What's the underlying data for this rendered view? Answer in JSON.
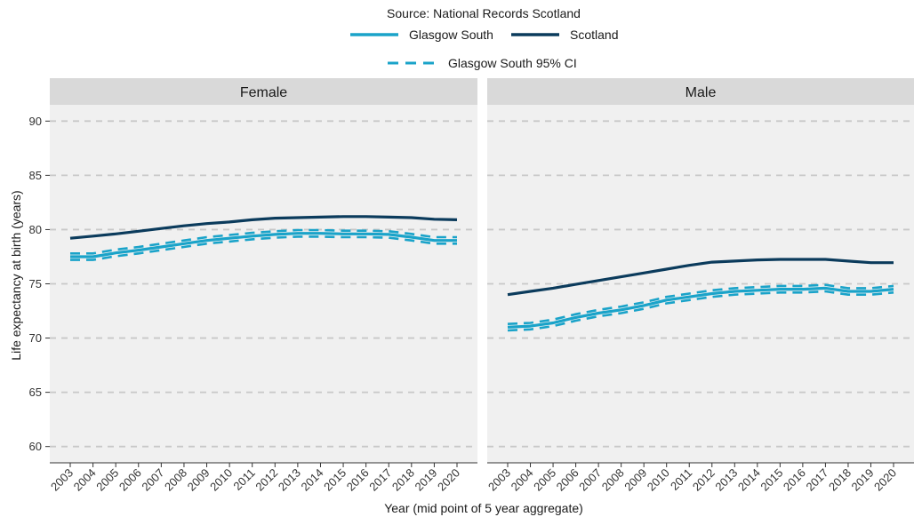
{
  "source_text": "Source: National Records Scotland",
  "legend": {
    "glasgow_south": "Glasgow South",
    "scotland": "Scotland",
    "ci": "Glasgow South 95% CI"
  },
  "colors": {
    "glasgow_south": "#1aa3c9",
    "scotland": "#0b3b5c",
    "panel_bg": "#f0f0f0",
    "strip_bg": "#d9d9d9",
    "grid": "#c8c8c8"
  },
  "chart_data": {
    "type": "line",
    "xlabel": "Year (mid point of 5 year aggregate)",
    "ylabel": "Life expectancy at birth (years)",
    "ylim": [
      58.5,
      91.5
    ],
    "yticks": [
      60,
      65,
      70,
      75,
      80,
      85,
      90
    ],
    "x": [
      "2003",
      "2004",
      "2005",
      "2006",
      "2007",
      "2008",
      "2009",
      "2010",
      "2011",
      "2012",
      "2013",
      "2014",
      "2015",
      "2016",
      "2017",
      "2018",
      "2019",
      "2020"
    ],
    "grid": true,
    "legend_position": "top",
    "panels": [
      {
        "title": "Female",
        "series": [
          {
            "name": "Scotland",
            "values": [
              79.2,
              79.4,
              79.6,
              79.85,
              80.1,
              80.35,
              80.55,
              80.7,
              80.9,
              81.05,
              81.1,
              81.15,
              81.2,
              81.2,
              81.15,
              81.1,
              80.95,
              80.9
            ]
          },
          {
            "name": "Glasgow South",
            "values": [
              77.5,
              77.5,
              77.85,
              78.1,
              78.4,
              78.7,
              79.0,
              79.2,
              79.4,
              79.55,
              79.65,
              79.65,
              79.6,
              79.6,
              79.55,
              79.3,
              79.0,
              79.0
            ]
          },
          {
            "name": "Glasgow South 95% CI",
            "lower": [
              77.2,
              77.2,
              77.55,
              77.8,
              78.1,
              78.4,
              78.7,
              78.9,
              79.1,
              79.25,
              79.35,
              79.35,
              79.3,
              79.3,
              79.25,
              79.0,
              78.7,
              78.7
            ],
            "upper": [
              77.8,
              77.8,
              78.15,
              78.4,
              78.7,
              79.0,
              79.3,
              79.5,
              79.7,
              79.85,
              79.95,
              79.95,
              79.9,
              79.9,
              79.85,
              79.6,
              79.3,
              79.3
            ]
          }
        ]
      },
      {
        "title": "Male",
        "series": [
          {
            "name": "Scotland",
            "values": [
              74.0,
              74.3,
              74.6,
              74.95,
              75.3,
              75.65,
              76.0,
              76.35,
              76.7,
              77.0,
              77.1,
              77.2,
              77.25,
              77.25,
              77.25,
              77.1,
              76.95,
              76.95
            ]
          },
          {
            "name": "Glasgow South",
            "values": [
              71.0,
              71.1,
              71.4,
              71.9,
              72.3,
              72.6,
              73.0,
              73.5,
              73.8,
              74.1,
              74.3,
              74.4,
              74.5,
              74.5,
              74.6,
              74.3,
              74.3,
              74.5
            ]
          },
          {
            "name": "Glasgow South 95% CI",
            "lower": [
              70.7,
              70.8,
              71.1,
              71.6,
              72.0,
              72.3,
              72.7,
              73.2,
              73.5,
              73.8,
              74.0,
              74.1,
              74.2,
              74.2,
              74.3,
              74.0,
              74.0,
              74.2
            ],
            "upper": [
              71.3,
              71.4,
              71.7,
              72.2,
              72.6,
              72.9,
              73.3,
              73.8,
              74.1,
              74.4,
              74.6,
              74.7,
              74.8,
              74.8,
              74.9,
              74.6,
              74.6,
              74.8
            ]
          }
        ]
      }
    ]
  }
}
